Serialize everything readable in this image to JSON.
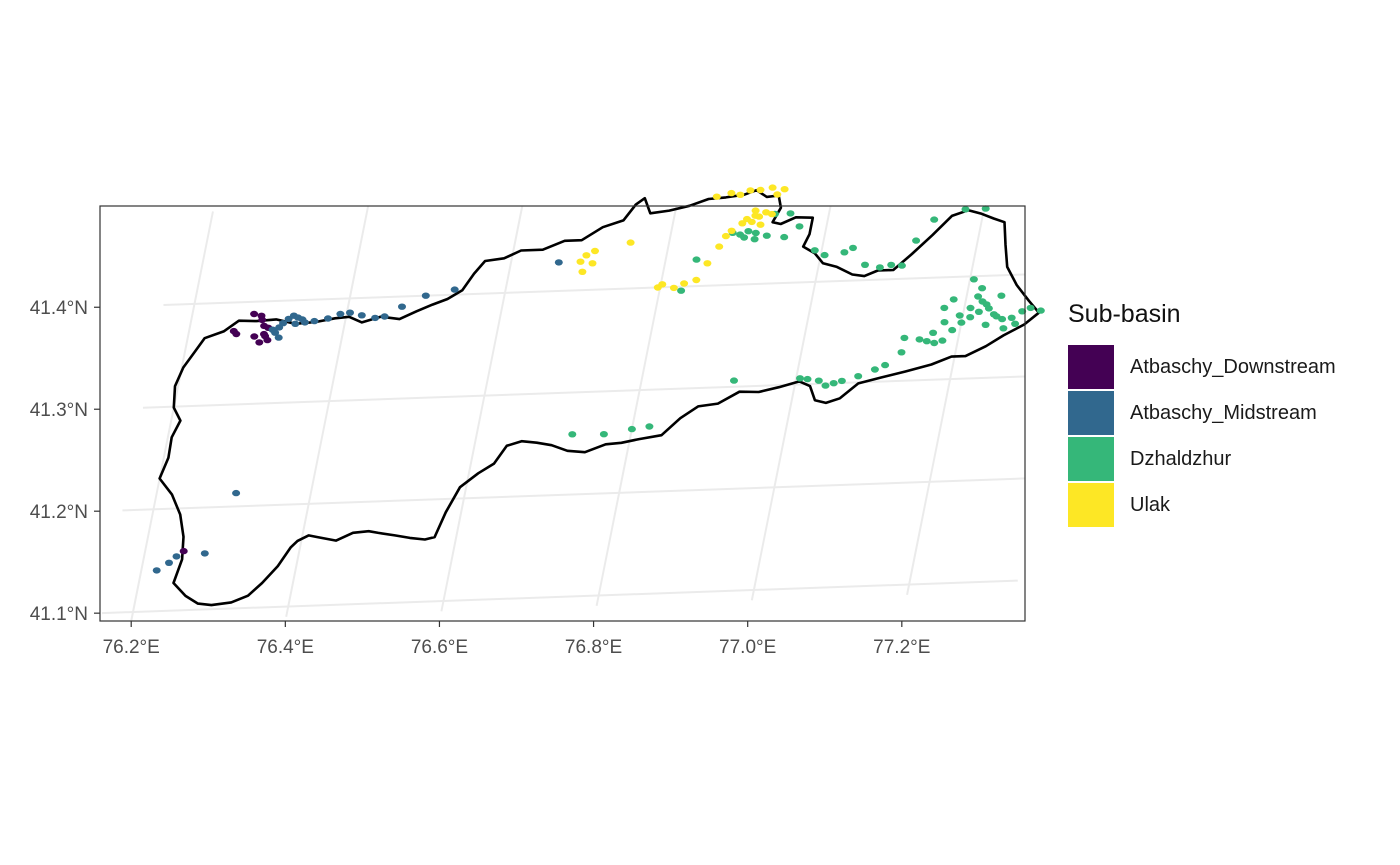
{
  "chart_data": {
    "type": "map",
    "title": "",
    "xlabel": "",
    "ylabel": "",
    "xlim": [
      76.16,
      77.34
    ],
    "ylim": [
      41.09,
      41.49
    ],
    "x_ticks": [
      {
        "value": 76.2,
        "label": "76.2°E"
      },
      {
        "value": 76.4,
        "label": "76.4°E"
      },
      {
        "value": 76.6,
        "label": "76.6°E"
      },
      {
        "value": 76.8,
        "label": "76.8°E"
      },
      {
        "value": 77.0,
        "label": "77.0°E"
      },
      {
        "value": 77.2,
        "label": "77.2°E"
      }
    ],
    "y_ticks": [
      {
        "value": 41.1,
        "label": "41.1°N"
      },
      {
        "value": 41.2,
        "label": "41.2°N"
      },
      {
        "value": 41.3,
        "label": "41.3°N"
      },
      {
        "value": 41.4,
        "label": "41.4°N"
      }
    ],
    "grid": true,
    "legend_position": "right",
    "legend": {
      "title": "Sub-basin",
      "entries": [
        {
          "label": "Atbaschy_Downstream",
          "color": "#440154"
        },
        {
          "label": "Atbaschy_Midstream",
          "color": "#31688E"
        },
        {
          "label": "Dzhaldzhur",
          "color": "#35B779"
        },
        {
          "label": "Ulak",
          "color": "#FDE725"
        }
      ]
    },
    "boundary": [
      [
        76.222,
        41.366
      ],
      [
        76.245,
        41.372
      ],
      [
        76.262,
        41.382
      ],
      [
        76.285,
        41.381
      ],
      [
        76.31,
        41.382
      ],
      [
        76.336,
        41.377
      ],
      [
        76.362,
        41.378
      ],
      [
        76.386,
        41.381
      ],
      [
        76.404,
        41.382
      ],
      [
        76.422,
        41.376
      ],
      [
        76.445,
        41.381
      ],
      [
        76.47,
        41.378
      ],
      [
        76.49,
        41.385
      ],
      [
        76.509,
        41.391
      ],
      [
        76.527,
        41.396
      ],
      [
        76.544,
        41.404
      ],
      [
        76.555,
        41.42
      ],
      [
        76.566,
        41.432
      ],
      [
        76.59,
        41.434
      ],
      [
        76.61,
        41.441
      ],
      [
        76.638,
        41.441
      ],
      [
        76.664,
        41.449
      ],
      [
        76.686,
        41.449
      ],
      [
        76.71,
        41.461
      ],
      [
        76.735,
        41.467
      ],
      [
        76.747,
        41.482
      ],
      [
        76.757,
        41.488
      ],
      [
        76.768,
        41.473
      ],
      [
        76.792,
        41.475
      ],
      [
        76.817,
        41.479
      ],
      [
        76.84,
        41.485
      ],
      [
        76.862,
        41.486
      ],
      [
        76.885,
        41.488
      ],
      [
        76.9,
        41.492
      ],
      [
        76.915,
        41.485
      ],
      [
        76.93,
        41.486
      ],
      [
        76.936,
        41.474
      ],
      [
        76.929,
        41.46
      ],
      [
        76.94,
        41.458
      ],
      [
        76.958,
        41.464
      ],
      [
        76.98,
        41.463
      ],
      [
        76.98,
        41.447
      ],
      [
        76.975,
        41.435
      ],
      [
        76.992,
        41.428
      ],
      [
        77.005,
        41.418
      ],
      [
        77.024,
        41.414
      ],
      [
        77.046,
        41.406
      ],
      [
        77.062,
        41.404
      ],
      [
        77.078,
        41.409
      ],
      [
        77.098,
        41.409
      ],
      [
        77.118,
        41.424
      ],
      [
        77.14,
        41.442
      ],
      [
        77.16,
        41.46
      ],
      [
        77.18,
        41.465
      ],
      [
        77.198,
        41.461
      ],
      [
        77.215,
        41.456
      ],
      [
        77.23,
        41.452
      ],
      [
        77.237,
        41.43
      ],
      [
        77.245,
        41.408
      ],
      [
        77.262,
        41.39
      ],
      [
        77.282,
        41.374
      ],
      [
        77.298,
        41.362
      ],
      [
        77.282,
        41.351
      ],
      [
        77.258,
        41.341
      ],
      [
        77.238,
        41.331
      ],
      [
        77.214,
        41.322
      ],
      [
        77.196,
        41.322
      ],
      [
        77.172,
        41.315
      ],
      [
        77.14,
        41.309
      ],
      [
        77.11,
        41.304
      ],
      [
        77.082,
        41.299
      ],
      [
        77.062,
        41.285
      ],
      [
        77.045,
        41.281
      ],
      [
        77.03,
        41.284
      ],
      [
        77.02,
        41.298
      ],
      [
        77.005,
        41.303
      ],
      [
        76.98,
        41.298
      ],
      [
        76.955,
        41.294
      ],
      [
        76.93,
        41.295
      ],
      [
        76.905,
        41.284
      ],
      [
        76.88,
        41.282
      ],
      [
        76.86,
        41.271
      ],
      [
        76.84,
        41.255
      ],
      [
        76.812,
        41.252
      ],
      [
        76.79,
        41.249
      ],
      [
        76.77,
        41.248
      ],
      [
        76.745,
        41.241
      ],
      [
        76.722,
        41.243
      ],
      [
        76.7,
        41.249
      ],
      [
        76.68,
        41.252
      ],
      [
        76.66,
        41.254
      ],
      [
        76.642,
        41.25
      ],
      [
        76.63,
        41.233
      ],
      [
        76.612,
        41.224
      ],
      [
        76.592,
        41.211
      ],
      [
        76.58,
        41.187
      ],
      [
        76.572,
        41.163
      ],
      [
        76.56,
        41.161
      ],
      [
        76.54,
        41.163
      ],
      [
        76.52,
        41.166
      ],
      [
        76.498,
        41.169
      ],
      [
        76.485,
        41.171
      ],
      [
        76.465,
        41.17
      ],
      [
        76.445,
        41.163
      ],
      [
        76.42,
        41.167
      ],
      [
        76.408,
        41.169
      ],
      [
        76.395,
        41.164
      ],
      [
        76.388,
        41.158
      ],
      [
        76.376,
        41.14
      ],
      [
        76.36,
        41.124
      ],
      [
        76.345,
        41.112
      ],
      [
        76.325,
        41.106
      ],
      [
        76.3,
        41.104
      ],
      [
        76.282,
        41.106
      ],
      [
        76.264,
        41.114
      ],
      [
        76.245,
        41.127
      ],
      [
        76.25,
        41.15
      ],
      [
        76.246,
        41.172
      ],
      [
        76.236,
        41.194
      ],
      [
        76.22,
        41.214
      ],
      [
        76.2,
        41.23
      ],
      [
        76.206,
        41.25
      ],
      [
        76.205,
        41.27
      ],
      [
        76.212,
        41.286
      ],
      [
        76.2,
        41.299
      ],
      [
        76.196,
        41.32
      ],
      [
        76.202,
        41.338
      ],
      [
        76.212,
        41.352
      ],
      [
        76.222,
        41.366
      ]
    ],
    "series": [
      {
        "name": "Atbaschy_Downstream",
        "color": "#440154",
        "points": [
          [
            76.28,
            41.388
          ],
          [
            76.292,
            41.382
          ],
          [
            76.29,
            41.386
          ],
          [
            76.296,
            41.376
          ],
          [
            76.302,
            41.374
          ],
          [
            76.3,
            41.366
          ],
          [
            76.294,
            41.36
          ],
          [
            76.304,
            41.362
          ],
          [
            76.298,
            41.368
          ],
          [
            76.258,
            41.372
          ],
          [
            76.262,
            41.369
          ],
          [
            76.286,
            41.366
          ],
          [
            76.25,
            41.158
          ]
        ]
      },
      {
        "name": "Atbaschy_Midstream",
        "color": "#31688E",
        "points": [
          [
            76.308,
            41.372
          ],
          [
            76.312,
            41.369
          ],
          [
            76.316,
            41.374
          ],
          [
            76.32,
            41.378
          ],
          [
            76.326,
            41.382
          ],
          [
            76.332,
            41.385
          ],
          [
            76.338,
            41.383
          ],
          [
            76.344,
            41.381
          ],
          [
            76.336,
            41.377
          ],
          [
            76.318,
            41.364
          ],
          [
            76.348,
            41.378
          ],
          [
            76.36,
            41.379
          ],
          [
            76.377,
            41.381
          ],
          [
            76.392,
            41.385
          ],
          [
            76.404,
            41.386
          ],
          [
            76.42,
            41.383
          ],
          [
            76.438,
            41.38
          ],
          [
            76.45,
            41.381
          ],
          [
            76.47,
            41.39
          ],
          [
            76.498,
            41.4
          ],
          [
            76.534,
            41.405
          ],
          [
            76.662,
            41.428
          ],
          [
            76.242,
            41.153
          ],
          [
            76.234,
            41.147
          ],
          [
            76.22,
            41.14
          ],
          [
            76.278,
            41.155
          ],
          [
            76.303,
            41.213
          ]
        ]
      },
      {
        "name": "Dzhaldzhur",
        "color": "#35B779",
        "points": [
          [
            76.93,
            41.468
          ],
          [
            76.95,
            41.468
          ],
          [
            76.965,
            41.455
          ],
          [
            76.991,
            41.431
          ],
          [
            77.005,
            41.426
          ],
          [
            77.03,
            41.428
          ],
          [
            77.04,
            41.432
          ],
          [
            77.06,
            41.415
          ],
          [
            77.08,
            41.412
          ],
          [
            77.094,
            41.414
          ],
          [
            77.108,
            41.413
          ],
          [
            77.12,
            41.437
          ],
          [
            77.138,
            41.457
          ],
          [
            77.176,
            41.466
          ],
          [
            77.202,
            41.466
          ],
          [
            77.205,
            41.397
          ],
          [
            77.215,
            41.38
          ],
          [
            77.228,
            41.372
          ],
          [
            77.24,
            41.362
          ],
          [
            77.252,
            41.357
          ],
          [
            77.264,
            41.358
          ],
          [
            77.276,
            41.364
          ],
          [
            77.286,
            41.367
          ],
          [
            77.245,
            41.38
          ],
          [
            77.232,
            41.368
          ],
          [
            77.222,
            41.375
          ],
          [
            77.208,
            41.369
          ],
          [
            77.2,
            41.355
          ],
          [
            77.19,
            41.348
          ],
          [
            77.18,
            41.338
          ],
          [
            77.17,
            41.336
          ],
          [
            77.16,
            41.338
          ],
          [
            77.166,
            41.346
          ],
          [
            77.178,
            41.356
          ],
          [
            77.196,
            41.362
          ],
          [
            77.21,
            41.36
          ],
          [
            77.22,
            41.365
          ],
          [
            77.232,
            41.352
          ],
          [
            77.244,
            41.36
          ],
          [
            77.256,
            41.348
          ],
          [
            77.27,
            41.352
          ],
          [
            77.218,
            41.388
          ],
          [
            77.184,
            41.378
          ],
          [
            77.174,
            41.37
          ],
          [
            77.15,
            41.34
          ],
          [
            77.13,
            41.342
          ],
          [
            77.13,
            41.328
          ],
          [
            77.112,
            41.316
          ],
          [
            77.1,
            41.312
          ],
          [
            77.08,
            41.306
          ],
          [
            77.06,
            41.302
          ],
          [
            77.05,
            41.3
          ],
          [
            77.04,
            41.298
          ],
          [
            77.03,
            41.303
          ],
          [
            77.015,
            41.305
          ],
          [
            77.005,
            41.306
          ],
          [
            76.92,
            41.306
          ],
          [
            76.828,
            41.396
          ],
          [
            76.84,
            41.426
          ],
          [
            76.88,
            41.451
          ],
          [
            76.89,
            41.449
          ],
          [
            76.9,
            41.452
          ],
          [
            76.91,
            41.45
          ],
          [
            76.925,
            41.447
          ],
          [
            76.948,
            41.445
          ],
          [
            76.91,
            41.444
          ],
          [
            76.896,
            41.446
          ],
          [
            76.822,
            41.264
          ],
          [
            76.8,
            41.262
          ],
          [
            76.765,
            41.258
          ],
          [
            76.724,
            41.259
          ],
          [
            77.3,
            41.364
          ]
        ]
      },
      {
        "name": "Ulak",
        "color": "#FDE725",
        "points": [
          [
            76.85,
            41.487
          ],
          [
            76.868,
            41.49
          ],
          [
            76.88,
            41.488
          ],
          [
            76.892,
            41.492
          ],
          [
            76.905,
            41.492
          ],
          [
            76.92,
            41.494
          ],
          [
            76.936,
            41.492
          ],
          [
            76.928,
            41.487
          ],
          [
            76.904,
            41.472
          ],
          [
            76.91,
            41.466
          ],
          [
            76.918,
            41.47
          ],
          [
            76.926,
            41.468
          ],
          [
            76.914,
            41.458
          ],
          [
            76.902,
            41.461
          ],
          [
            76.89,
            41.46
          ],
          [
            76.878,
            41.453
          ],
          [
            76.872,
            41.448
          ],
          [
            76.866,
            41.438
          ],
          [
            76.905,
            41.467
          ],
          [
            76.895,
            41.464
          ],
          [
            76.706,
            41.438
          ],
          [
            76.696,
            41.434
          ],
          [
            76.69,
            41.428
          ],
          [
            76.706,
            41.426
          ],
          [
            76.695,
            41.418
          ],
          [
            76.75,
            41.445
          ],
          [
            76.797,
            41.4
          ],
          [
            76.802,
            41.403
          ],
          [
            76.818,
            41.399
          ],
          [
            76.83,
            41.403
          ],
          [
            76.845,
            41.406
          ],
          [
            76.855,
            41.422
          ]
        ]
      }
    ]
  }
}
